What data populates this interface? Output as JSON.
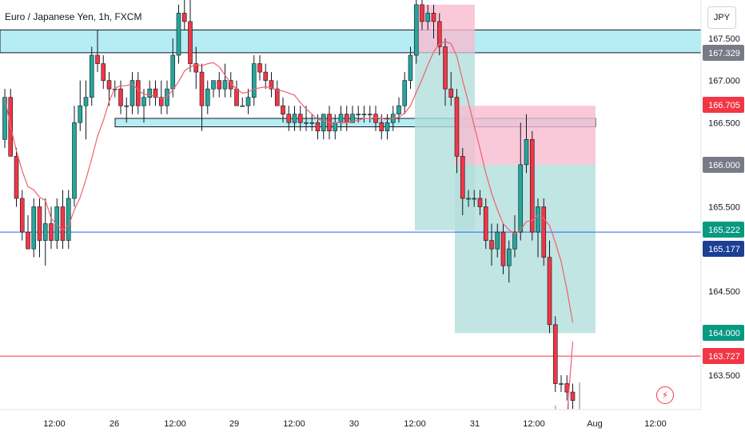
{
  "header": {
    "title": "Euro / Japanese Yen, 1h, FXCM"
  },
  "currency_button": {
    "label": "JPY"
  },
  "alert_button": {
    "icon": "lightning-icon"
  },
  "colors": {
    "up": "#26a69a",
    "down": "#f23645",
    "ma": "#f0606d",
    "zone_fill": "#b2ebf2",
    "target_fill": "#b2dfdb",
    "stop_fill": "#f8bbd0",
    "blue_line": "#2962ff",
    "red_line": "#f23645"
  },
  "chart_data": {
    "type": "candlestick",
    "title": "Euro / Japanese Yen, 1h, FXCM",
    "y_axis": {
      "ticks": [
        "167.500",
        "167.000",
        "166.500",
        "166.000",
        "165.500",
        "165.000",
        "164.500",
        "164.000",
        "163.500"
      ],
      "tick_values": [
        167.5,
        167.0,
        166.5,
        166.0,
        165.5,
        165.0,
        164.5,
        164.0,
        163.5
      ]
    },
    "x_axis": {
      "ticks": [
        "12:00",
        "26",
        "12:00",
        "29",
        "12:00",
        "30",
        "12:00",
        "31",
        "12:00",
        "Aug",
        "12:00"
      ]
    },
    "price_labels": [
      {
        "value": "167.329",
        "kind": "gray"
      },
      {
        "value": "166.705",
        "kind": "red"
      },
      {
        "value": "166.000",
        "kind": "gray"
      },
      {
        "value": "165.222",
        "kind": "green"
      },
      {
        "value": "165.177",
        "kind": "navy"
      },
      {
        "value": "164.000",
        "kind": "green"
      },
      {
        "value": "163.727",
        "kind": "red"
      }
    ],
    "zones": [
      {
        "kind": "resistance",
        "from": 167.33,
        "to": 167.6
      },
      {
        "kind": "support",
        "from": 166.45,
        "to": 166.55
      }
    ],
    "positions": [
      {
        "side": "short",
        "entry": 167.33,
        "stop": 167.9,
        "target": 165.22
      },
      {
        "side": "short",
        "entry": 166.0,
        "stop": 166.7,
        "target": 164.0
      }
    ],
    "horizontal_lines": [
      {
        "value": 165.2,
        "color": "blue"
      },
      {
        "value": 163.727,
        "color": "red"
      }
    ],
    "candles": [
      [
        166.3,
        166.9,
        166.2,
        166.8
      ],
      [
        166.8,
        166.9,
        166.1,
        166.1
      ],
      [
        166.1,
        166.2,
        165.5,
        165.6
      ],
      [
        165.6,
        165.7,
        165.1,
        165.2
      ],
      [
        165.2,
        165.4,
        165.0,
        165.0
      ],
      [
        165.0,
        165.6,
        164.9,
        165.5
      ],
      [
        165.5,
        165.6,
        164.9,
        165.1
      ],
      [
        165.1,
        165.6,
        164.8,
        165.3
      ],
      [
        165.3,
        165.5,
        165.0,
        165.1
      ],
      [
        165.1,
        165.6,
        165.0,
        165.5
      ],
      [
        165.5,
        165.7,
        165.0,
        165.1
      ],
      [
        165.1,
        165.7,
        165.0,
        165.6
      ],
      [
        165.6,
        166.7,
        165.5,
        166.5
      ],
      [
        166.5,
        167.0,
        166.4,
        166.7
      ],
      [
        166.7,
        167.0,
        166.3,
        166.8
      ],
      [
        166.8,
        167.4,
        166.7,
        167.3
      ],
      [
        167.3,
        167.6,
        167.1,
        167.2
      ],
      [
        167.2,
        167.3,
        166.9,
        167.0
      ],
      [
        167.0,
        167.1,
        166.7,
        166.9
      ],
      [
        166.9,
        167.0,
        166.8,
        166.9
      ],
      [
        166.9,
        167.0,
        166.6,
        166.7
      ],
      [
        166.7,
        166.8,
        166.5,
        166.7
      ],
      [
        166.7,
        167.1,
        166.6,
        167.0
      ],
      [
        167.0,
        167.1,
        166.6,
        166.7
      ],
      [
        166.7,
        166.9,
        166.5,
        166.8
      ],
      [
        166.8,
        167.0,
        166.7,
        166.9
      ],
      [
        166.9,
        167.0,
        166.7,
        166.8
      ],
      [
        166.8,
        167.0,
        166.6,
        166.7
      ],
      [
        166.7,
        167.0,
        166.6,
        166.9
      ],
      [
        166.9,
        167.5,
        166.8,
        167.3
      ],
      [
        167.3,
        167.9,
        167.2,
        167.8
      ],
      [
        167.8,
        168.1,
        167.6,
        167.7
      ],
      [
        167.7,
        168.1,
        167.1,
        167.2
      ],
      [
        167.2,
        167.4,
        166.9,
        167.1
      ],
      [
        167.1,
        167.2,
        166.4,
        166.7
      ],
      [
        166.7,
        167.0,
        166.6,
        166.9
      ],
      [
        166.9,
        167.0,
        166.8,
        167.0
      ],
      [
        167.0,
        167.1,
        166.8,
        166.9
      ],
      [
        166.9,
        167.2,
        166.8,
        167.0
      ],
      [
        167.0,
        167.1,
        166.8,
        166.9
      ],
      [
        166.9,
        167.0,
        166.7,
        166.7
      ],
      [
        166.7,
        166.8,
        166.7,
        166.7
      ],
      [
        166.7,
        166.9,
        166.6,
        166.8
      ],
      [
        166.8,
        167.3,
        166.7,
        167.2
      ],
      [
        167.2,
        167.3,
        167.0,
        167.1
      ],
      [
        167.1,
        167.2,
        166.9,
        167.0
      ],
      [
        167.0,
        167.1,
        166.8,
        166.9
      ],
      [
        166.9,
        167.0,
        166.7,
        166.7
      ],
      [
        166.7,
        166.8,
        166.5,
        166.6
      ],
      [
        166.6,
        166.7,
        166.4,
        166.5
      ],
      [
        166.5,
        166.7,
        166.4,
        166.6
      ],
      [
        166.6,
        166.7,
        166.4,
        166.5
      ],
      [
        166.5,
        166.7,
        166.4,
        166.5
      ],
      [
        166.5,
        166.6,
        166.4,
        166.5
      ],
      [
        166.5,
        166.6,
        166.3,
        166.4
      ],
      [
        166.4,
        166.6,
        166.3,
        166.6
      ],
      [
        166.6,
        166.7,
        166.3,
        166.4
      ],
      [
        166.4,
        166.6,
        166.3,
        166.5
      ],
      [
        166.5,
        166.7,
        166.4,
        166.6
      ],
      [
        166.6,
        166.7,
        166.4,
        166.5
      ],
      [
        166.5,
        166.7,
        166.5,
        166.6
      ],
      [
        166.6,
        166.7,
        166.5,
        166.6
      ],
      [
        166.6,
        166.7,
        166.5,
        166.6
      ],
      [
        166.6,
        166.7,
        166.5,
        166.6
      ],
      [
        166.6,
        166.7,
        166.4,
        166.5
      ],
      [
        166.5,
        166.6,
        166.3,
        166.4
      ],
      [
        166.4,
        166.6,
        166.3,
        166.5
      ],
      [
        166.5,
        166.7,
        166.4,
        166.6
      ],
      [
        166.6,
        166.8,
        166.5,
        166.7
      ],
      [
        166.7,
        167.1,
        166.6,
        167.0
      ],
      [
        167.0,
        167.4,
        166.9,
        167.3
      ],
      [
        167.3,
        168.2,
        167.2,
        167.9
      ],
      [
        167.9,
        168.1,
        167.6,
        167.7
      ],
      [
        167.7,
        167.9,
        167.6,
        167.8
      ],
      [
        167.8,
        167.9,
        167.5,
        167.7
      ],
      [
        167.7,
        167.8,
        167.3,
        167.4
      ],
      [
        167.4,
        167.5,
        166.7,
        166.9
      ],
      [
        166.9,
        167.1,
        166.7,
        166.8
      ],
      [
        166.8,
        166.9,
        165.9,
        166.1
      ],
      [
        166.1,
        166.2,
        165.4,
        165.6
      ],
      [
        165.6,
        165.7,
        165.5,
        165.6
      ],
      [
        165.6,
        165.7,
        165.5,
        165.6
      ],
      [
        165.6,
        165.7,
        165.4,
        165.5
      ],
      [
        165.5,
        165.6,
        165.0,
        165.1
      ],
      [
        165.1,
        165.3,
        164.8,
        165.0
      ],
      [
        165.0,
        165.3,
        164.9,
        165.2
      ],
      [
        165.2,
        165.3,
        164.7,
        164.8
      ],
      [
        164.8,
        165.1,
        164.6,
        165.0
      ],
      [
        165.0,
        165.4,
        164.9,
        165.2
      ],
      [
        165.2,
        166.5,
        165.1,
        166.0
      ],
      [
        166.0,
        166.6,
        165.9,
        166.3
      ],
      [
        166.3,
        166.4,
        165.1,
        165.2
      ],
      [
        165.2,
        165.6,
        164.9,
        165.5
      ],
      [
        165.5,
        165.6,
        164.8,
        164.9
      ],
      [
        164.9,
        165.1,
        164.0,
        164.1
      ],
      [
        164.1,
        164.2,
        163.3,
        163.4
      ],
      [
        163.4,
        163.5,
        163.3,
        163.4
      ],
      [
        163.4,
        163.5,
        163.2,
        163.3
      ],
      [
        163.3,
        163.4,
        163.1,
        163.2
      ]
    ]
  }
}
